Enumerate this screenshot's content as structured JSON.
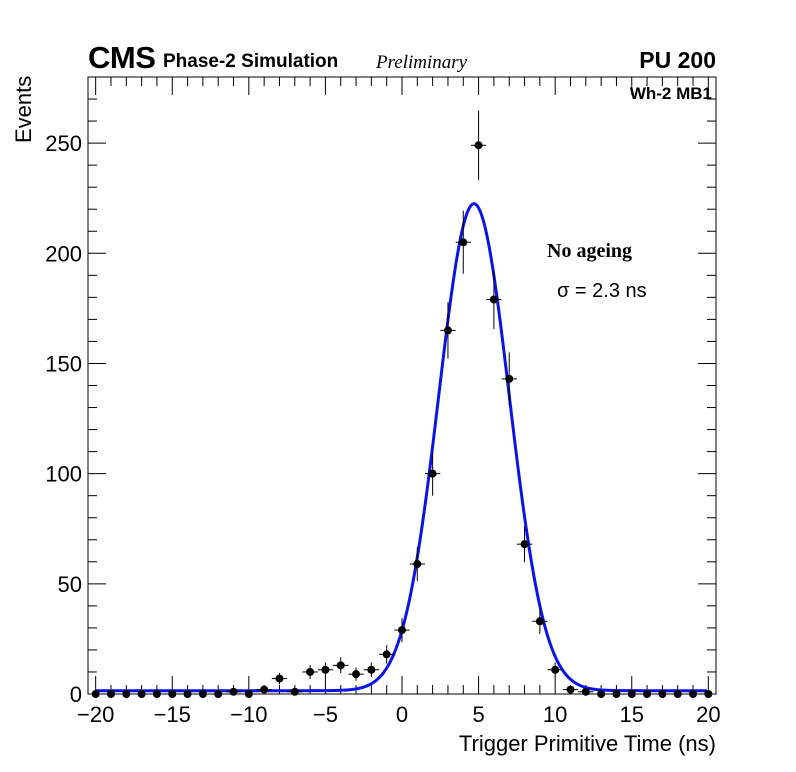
{
  "header": {
    "experiment": "CMS",
    "subtitle": "Phase-2 Simulation",
    "status": "Preliminary",
    "pileup": "PU 200",
    "region": "Wh-2 MB1"
  },
  "annotation": {
    "title": "No ageing",
    "sigma": "σ = 2.3 ns"
  },
  "chart_data": {
    "type": "scatter",
    "title": "",
    "xlabel": "Trigger Primitive Time (ns)",
    "ylabel": "Events",
    "xlim": [
      -20.5,
      20.5
    ],
    "ylim": [
      0,
      280
    ],
    "xticks": [
      -20,
      -15,
      -10,
      -5,
      0,
      5,
      10,
      15,
      20
    ],
    "xtick_labels": [
      "−20",
      "−15",
      "−10",
      "−5",
      "0",
      "5",
      "10",
      "15",
      "20"
    ],
    "yticks": [
      0,
      50,
      100,
      150,
      200,
      250
    ],
    "ytick_labels": [
      "0",
      "50",
      "100",
      "150",
      "200",
      "250"
    ],
    "bin_half_width": 0.5,
    "series": [
      {
        "name": "Simulated trigger primitives",
        "style": "markers with error bars",
        "color": "#000000",
        "x": [
          -20,
          -19,
          -18,
          -17,
          -16,
          -15,
          -14,
          -13,
          -12,
          -11,
          -10,
          -9,
          -8,
          -7,
          -6,
          -5,
          -4,
          -3,
          -2,
          -1,
          0,
          1,
          2,
          3,
          4,
          5,
          6,
          7,
          8,
          9,
          10,
          11,
          12,
          13,
          14,
          15,
          16,
          17,
          18,
          19,
          20
        ],
        "y": [
          0,
          0,
          0,
          0,
          0,
          0,
          0,
          0,
          0,
          1,
          0,
          2,
          7,
          1,
          10,
          11,
          13,
          9,
          11,
          18,
          29,
          59,
          100,
          165,
          205,
          249,
          179,
          143,
          68,
          33,
          11,
          2,
          1,
          0,
          0,
          0,
          0,
          0,
          0,
          0,
          0
        ],
        "yerr": [
          0,
          0,
          0,
          0,
          0,
          0,
          0,
          0,
          0,
          1,
          0,
          1.4,
          2.6,
          1,
          3.2,
          3.3,
          3.6,
          3,
          3.3,
          4.2,
          5.4,
          7.7,
          10,
          12.8,
          14.3,
          15.8,
          13.4,
          12,
          8.2,
          5.7,
          3.3,
          1.4,
          1,
          0,
          0,
          0,
          0,
          0,
          0,
          0,
          0
        ]
      },
      {
        "name": "Gaussian fit",
        "style": "line",
        "color": "#0a14e6",
        "function": "gaussian",
        "amplitude": 221,
        "mean": 4.7,
        "sigma": 2.3,
        "constant": 1.5
      }
    ]
  }
}
